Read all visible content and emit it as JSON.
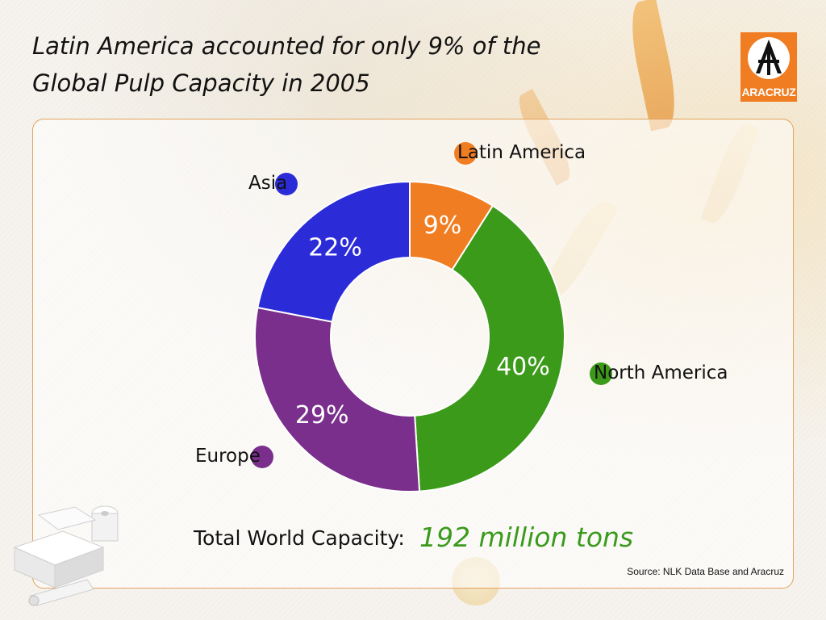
{
  "slide": {
    "title_line1": "Latin America accounted for only 9% of the",
    "title_line2": "Global Pulp Capacity in 2005",
    "total_label": "Total World Capacity:",
    "total_value": "192 million tons",
    "source": "Source: NLK Data Base and Aracruz"
  },
  "logo": {
    "text": "ARACRUZ",
    "color": "#f07d22"
  },
  "colors": {
    "latin_america": "#f07d22",
    "north_america": "#3c9a1a",
    "europe": "#7a2f8c",
    "asia": "#2b2bd8",
    "panel_border": "#e3a35c",
    "total_value": "#3a9a1c"
  },
  "chart_data": {
    "type": "pie",
    "style": "donut",
    "title": "Latin America accounted for only 9% of the Global Pulp Capacity in 2005",
    "unit": "%",
    "slices": [
      {
        "label": "Latin America",
        "value": 9,
        "display": "9%",
        "color": "#f07d22"
      },
      {
        "label": "North America",
        "value": 40,
        "display": "40%",
        "color": "#3c9a1a"
      },
      {
        "label": "Europe",
        "value": 29,
        "display": "29%",
        "color": "#7a2f8c"
      },
      {
        "label": "Asia",
        "value": 22,
        "display": "22%",
        "color": "#2b2bd8"
      }
    ],
    "total": "192 million tons"
  }
}
